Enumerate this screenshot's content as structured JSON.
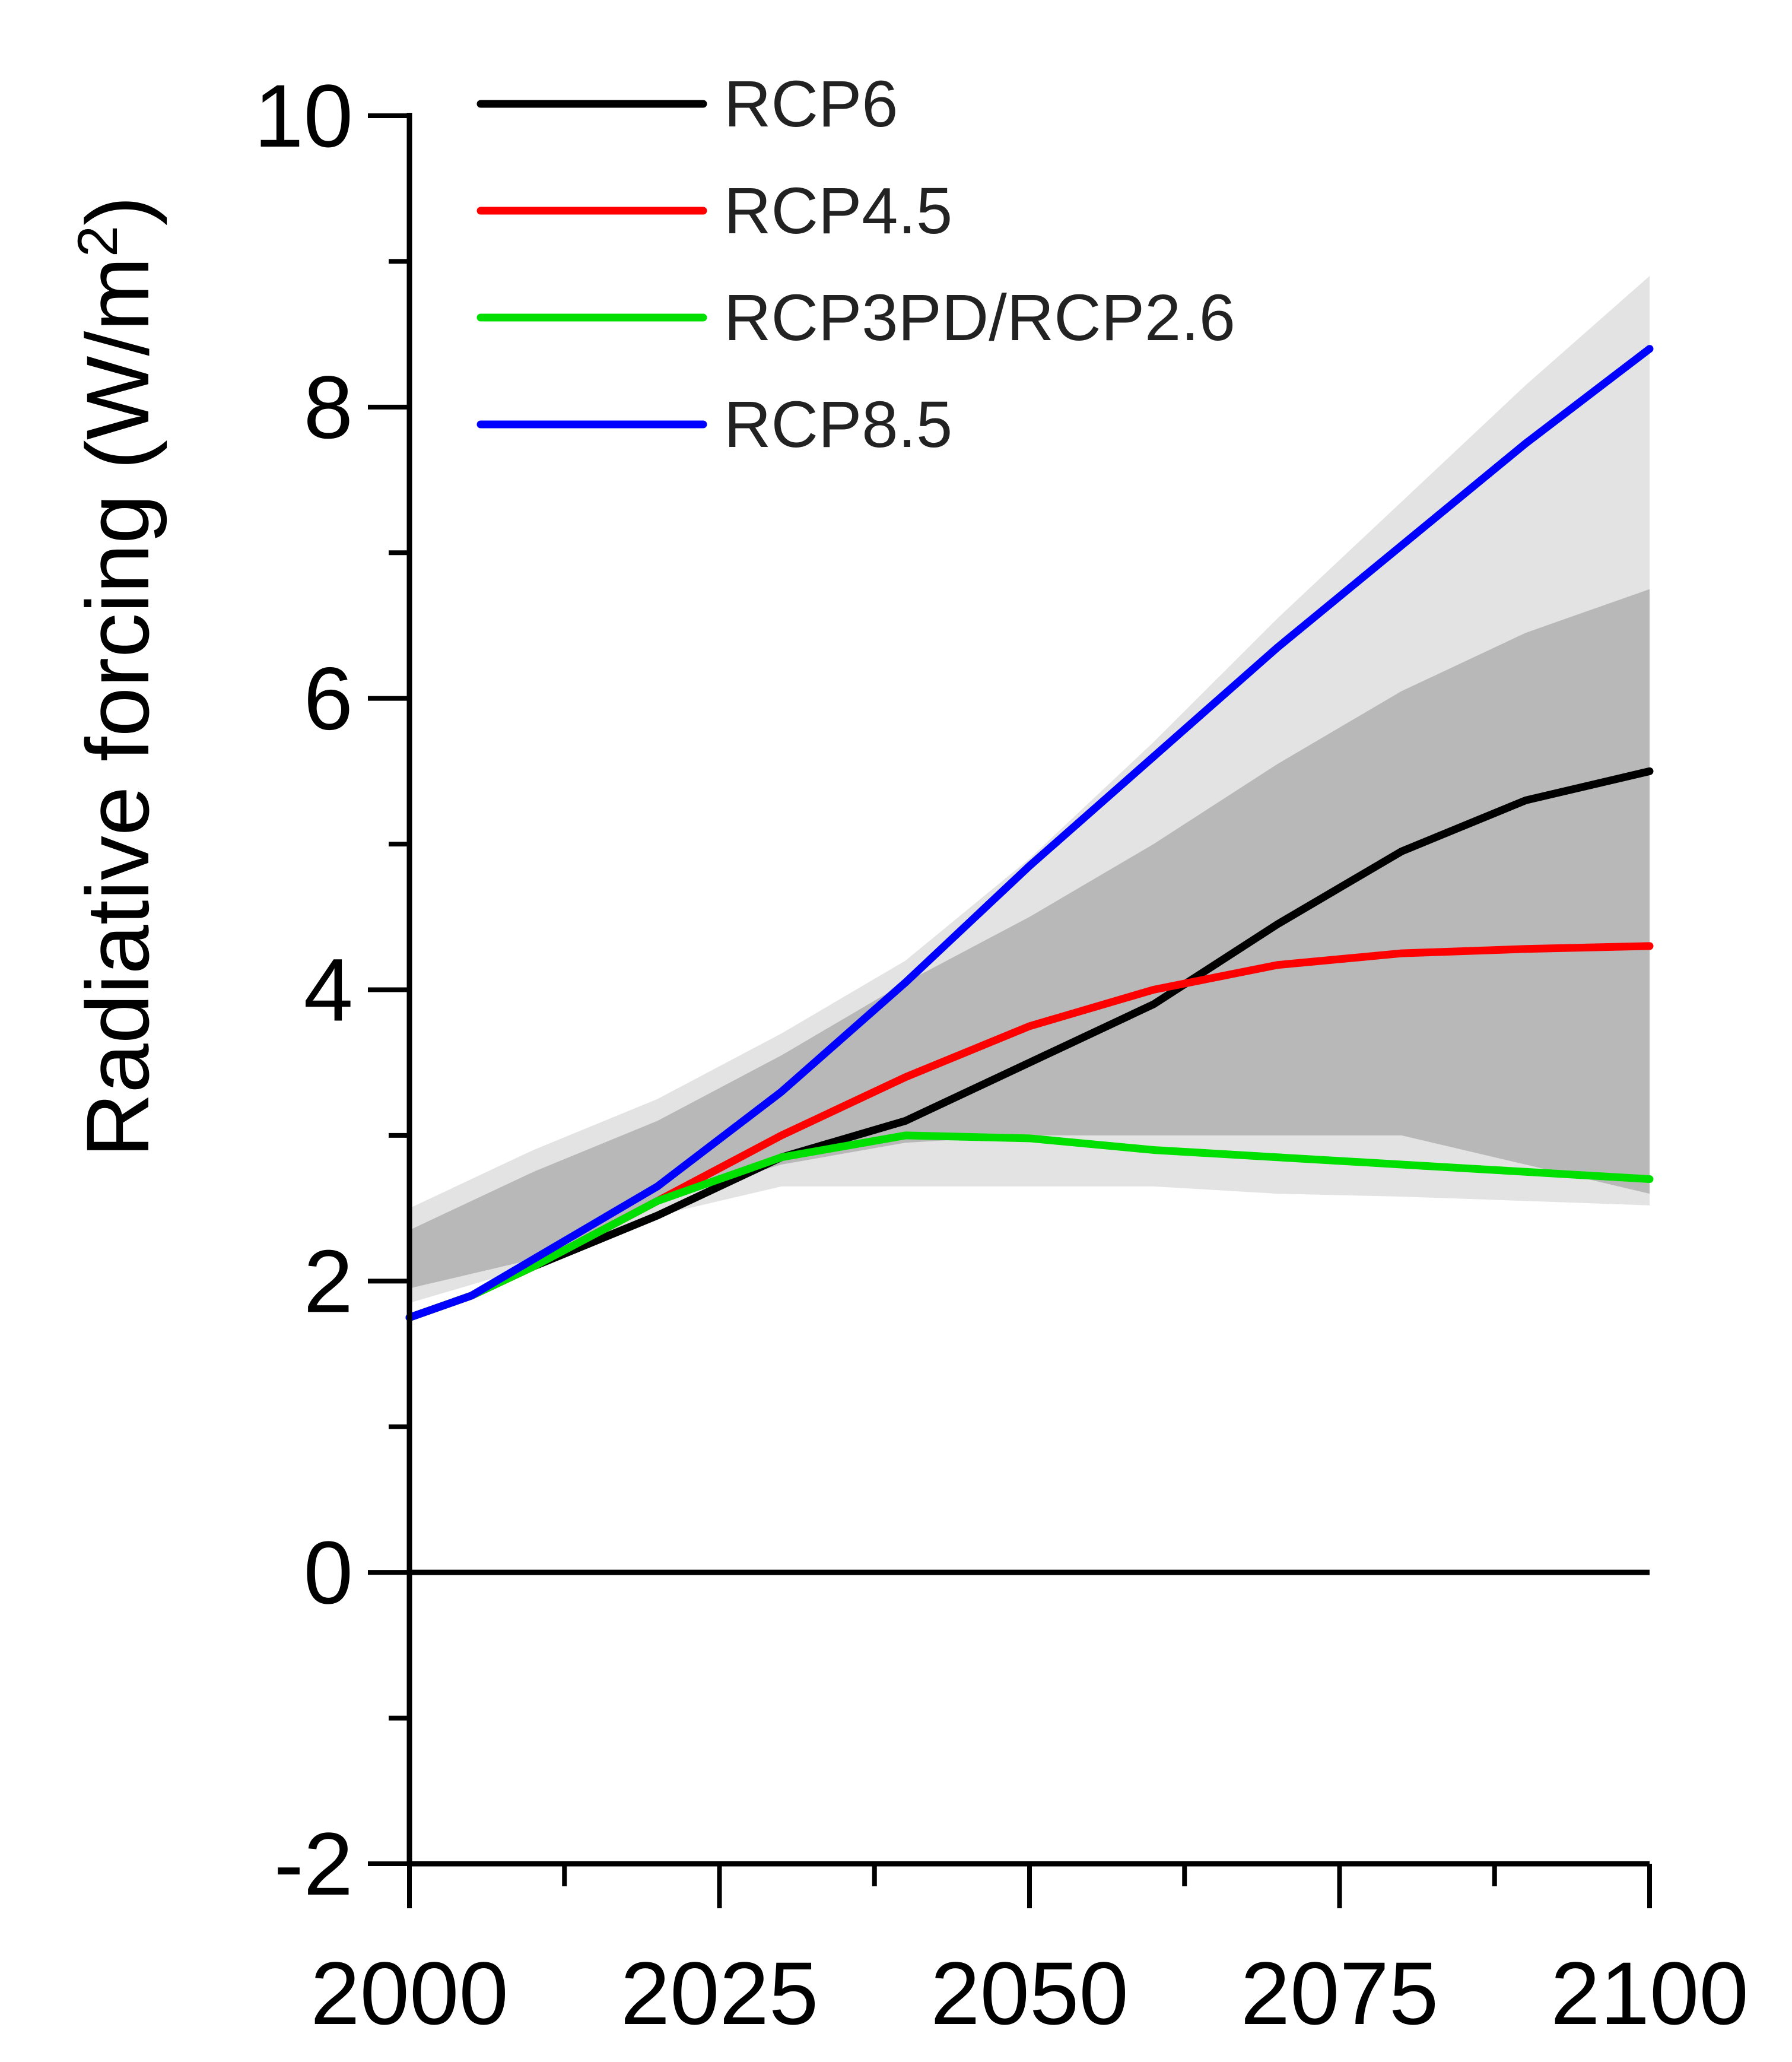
{
  "chart_data": {
    "type": "line",
    "title": "",
    "xlabel": "",
    "ylabel": "Radiative forcing (W/m",
    "ylabel_sup": "2",
    "ylabel_close": ")",
    "xlim": [
      2000,
      2100
    ],
    "ylim": [
      -2,
      10
    ],
    "x_ticks": [
      2000,
      2025,
      2050,
      2075,
      2100
    ],
    "x_tick_labels": [
      "2000",
      "2025",
      "2050",
      "2075",
      "2100"
    ],
    "x_minor_ticks": [
      2012.5,
      2037.5,
      2062.5,
      2087.5
    ],
    "y_ticks": [
      -2,
      0,
      2,
      4,
      6,
      8,
      10
    ],
    "y_tick_labels": [
      "-2",
      "0",
      "2",
      "4",
      "6",
      "8",
      "10"
    ],
    "y_minor_ticks": [
      -1,
      1,
      3,
      5,
      7,
      9
    ],
    "grid": false,
    "zero_line": true,
    "legend_position": "top-left",
    "series": [
      {
        "name": "RCP6",
        "color": "#000000",
        "x": [
          2000,
          2005,
          2010,
          2020,
          2030,
          2040,
          2050,
          2060,
          2070,
          2080,
          2090,
          2100
        ],
        "y": [
          1.75,
          1.9,
          2.1,
          2.45,
          2.85,
          3.1,
          3.5,
          3.9,
          4.45,
          4.95,
          5.3,
          5.5
        ]
      },
      {
        "name": "RCP4.5",
        "color": "#ff0000",
        "x": [
          2000,
          2005,
          2010,
          2020,
          2030,
          2040,
          2050,
          2060,
          2070,
          2080,
          2090,
          2100
        ],
        "y": [
          1.75,
          1.9,
          2.1,
          2.55,
          3.0,
          3.4,
          3.75,
          4.0,
          4.17,
          4.25,
          4.28,
          4.3
        ]
      },
      {
        "name": "RCP3PD/RCP2.6",
        "color": "#00e000",
        "x": [
          2000,
          2005,
          2010,
          2020,
          2030,
          2040,
          2050,
          2060,
          2070,
          2080,
          2090,
          2100
        ],
        "y": [
          1.75,
          1.9,
          2.1,
          2.55,
          2.85,
          3.0,
          2.98,
          2.9,
          2.85,
          2.8,
          2.75,
          2.7
        ]
      },
      {
        "name": "RCP8.5",
        "color": "#0000ff",
        "x": [
          2000,
          2005,
          2010,
          2020,
          2030,
          2040,
          2050,
          2060,
          2070,
          2080,
          2090,
          2100
        ],
        "y": [
          1.75,
          1.9,
          2.15,
          2.65,
          3.3,
          4.05,
          4.85,
          5.6,
          6.35,
          7.05,
          7.75,
          8.4
        ]
      }
    ],
    "bands": [
      {
        "name": "outer",
        "color": "#e3e3e3",
        "x": [
          2000,
          2010,
          2020,
          2030,
          2040,
          2050,
          2060,
          2070,
          2080,
          2090,
          2100
        ],
        "upper": [
          2.5,
          2.9,
          3.25,
          3.7,
          4.2,
          4.9,
          5.7,
          6.55,
          7.35,
          8.15,
          8.9
        ],
        "lower": [
          1.85,
          2.1,
          2.45,
          2.65,
          2.65,
          2.65,
          2.65,
          2.6,
          2.58,
          2.55,
          2.52
        ]
      },
      {
        "name": "inner",
        "color": "#b8b8b8",
        "x": [
          2000,
          2010,
          2020,
          2030,
          2040,
          2050,
          2060,
          2070,
          2080,
          2090,
          2100
        ],
        "upper": [
          2.35,
          2.75,
          3.1,
          3.55,
          4.05,
          4.5,
          5.0,
          5.55,
          6.05,
          6.45,
          6.75
        ],
        "lower": [
          1.95,
          2.15,
          2.55,
          2.8,
          2.95,
          3.0,
          3.0,
          3.0,
          3.0,
          2.8,
          2.6
        ]
      }
    ]
  }
}
